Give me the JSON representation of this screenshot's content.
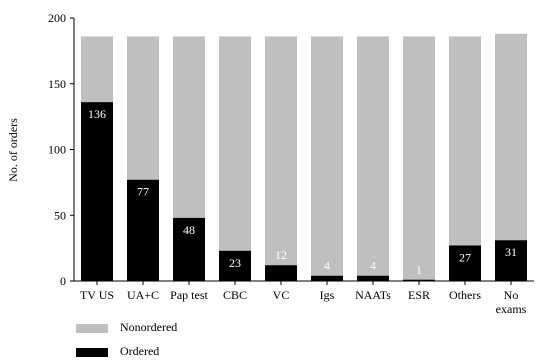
{
  "chart_data": {
    "type": "bar",
    "stacked": true,
    "categories": [
      "TV US",
      "UA+C",
      "Pap test",
      "CBC",
      "VC",
      "Igs",
      "NAATs",
      "ESR",
      "Others",
      "No exams"
    ],
    "series": [
      {
        "name": "Ordered",
        "values": [
          136,
          77,
          48,
          23,
          12,
          4,
          4,
          1,
          27,
          31
        ],
        "color": "#000000"
      },
      {
        "name": "Nonordered",
        "values": [
          50,
          109,
          138,
          163,
          174,
          182,
          182,
          185,
          159,
          157
        ],
        "color": "#bfbfbf"
      }
    ],
    "data_labels": [
      "136",
      "77",
      "48",
      "23",
      "12",
      "4",
      "4",
      "1",
      "27",
      "31"
    ],
    "category_labels": [
      [
        "TV US"
      ],
      [
        "UA+C"
      ],
      [
        "Pap test"
      ],
      [
        "CBC"
      ],
      [
        "VC"
      ],
      [
        "Igs"
      ],
      [
        "NAATs"
      ],
      [
        "ESR"
      ],
      [
        "Others"
      ],
      [
        "No",
        "exams"
      ]
    ],
    "ylabel": "No. of orders",
    "xlabel": "",
    "title": "",
    "ylim": [
      0,
      200
    ],
    "yticks": [
      0,
      50,
      100,
      150,
      200
    ],
    "grid": false,
    "legend_position": "bottom-left"
  },
  "legend": {
    "nonordered_label": "Nonordered",
    "ordered_label": "Ordered"
  }
}
